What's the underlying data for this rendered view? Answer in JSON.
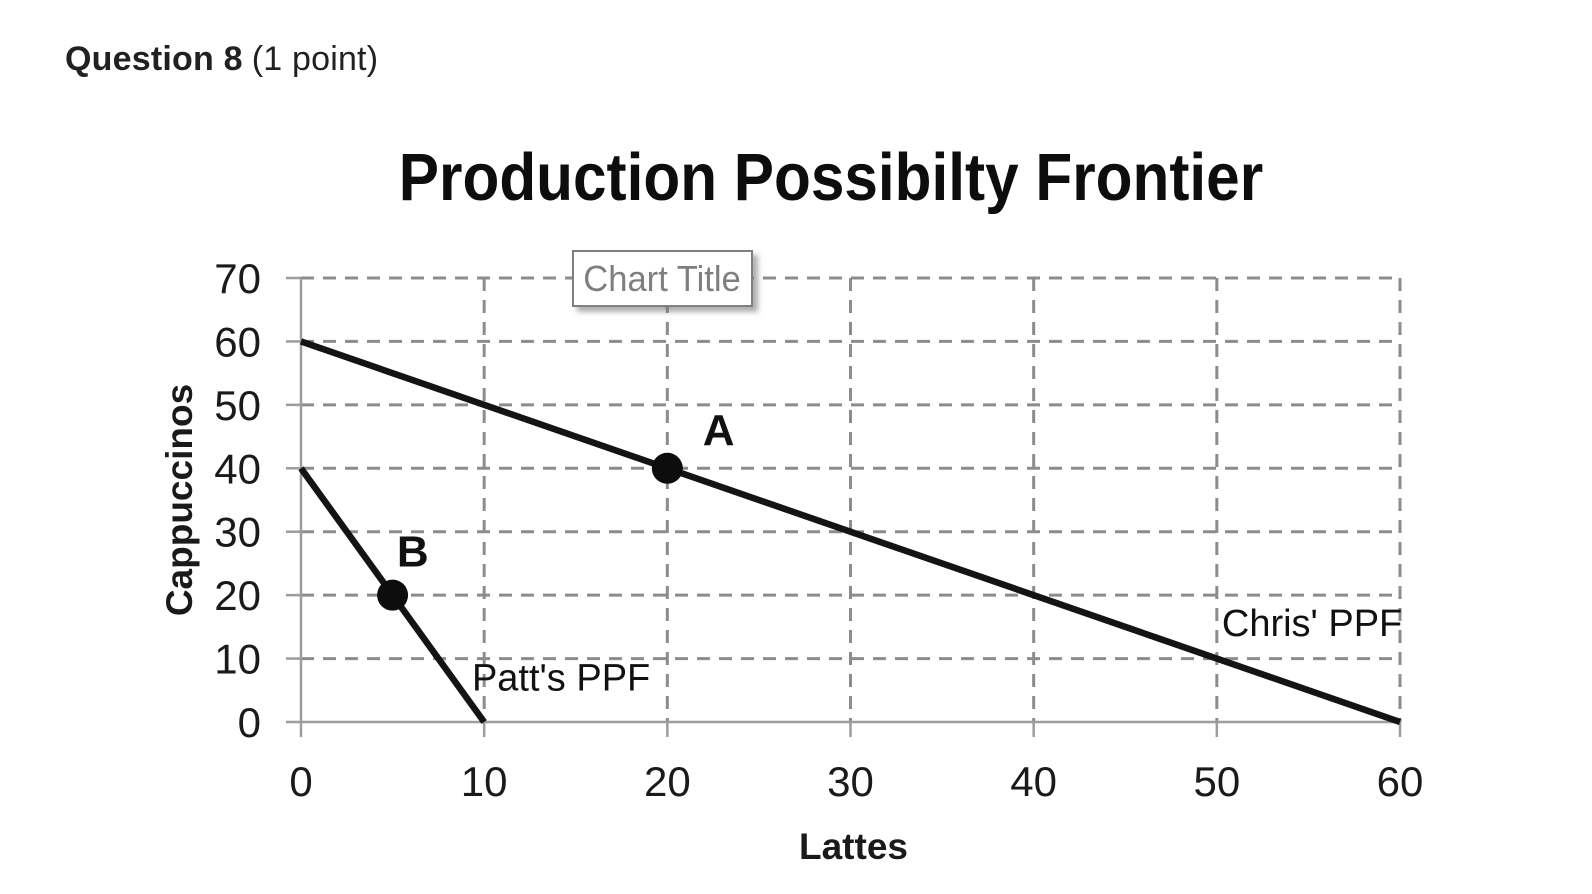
{
  "page": {
    "background": "#ffffff"
  },
  "header": {
    "question": "Question 8",
    "points": "(1 point)"
  },
  "chart_data": {
    "type": "line",
    "title": "Production Possibilty Frontier",
    "overlay_title_box": "Chart Title",
    "xlabel": "Lattes",
    "ylabel": "Cappuccinos",
    "xlim": [
      0,
      60
    ],
    "ylim": [
      0,
      70
    ],
    "xticks": [
      0,
      10,
      20,
      30,
      40,
      50,
      60
    ],
    "yticks": [
      0,
      10,
      20,
      30,
      40,
      50,
      60,
      70
    ],
    "grid": "dashed",
    "legend_position": "none",
    "series": [
      {
        "name": "Chris' PPF",
        "points": [
          [
            0,
            60
          ],
          [
            60,
            0
          ]
        ],
        "label_at": [
          55.2,
          15.6
        ]
      },
      {
        "name": "Patt's PPF",
        "points": [
          [
            0,
            40
          ],
          [
            10,
            0
          ]
        ],
        "label_at": [
          14.2,
          7.0
        ]
      }
    ],
    "markers": [
      {
        "label": "A",
        "point": [
          20,
          40
        ],
        "label_at": [
          22.8,
          46.2
        ]
      },
      {
        "label": "B",
        "point": [
          5,
          20
        ],
        "label_at": [
          6.1,
          27.0
        ]
      }
    ],
    "colors": {
      "line": "#141414",
      "marker": "#0d0d0d",
      "grid": "#8c8c8c",
      "axis": "#9d9d9d",
      "tick_label": "#1a1a1a",
      "annotation": "#111111",
      "box_text": "#7f7f7f",
      "box_border": "#7f7f7f"
    }
  }
}
